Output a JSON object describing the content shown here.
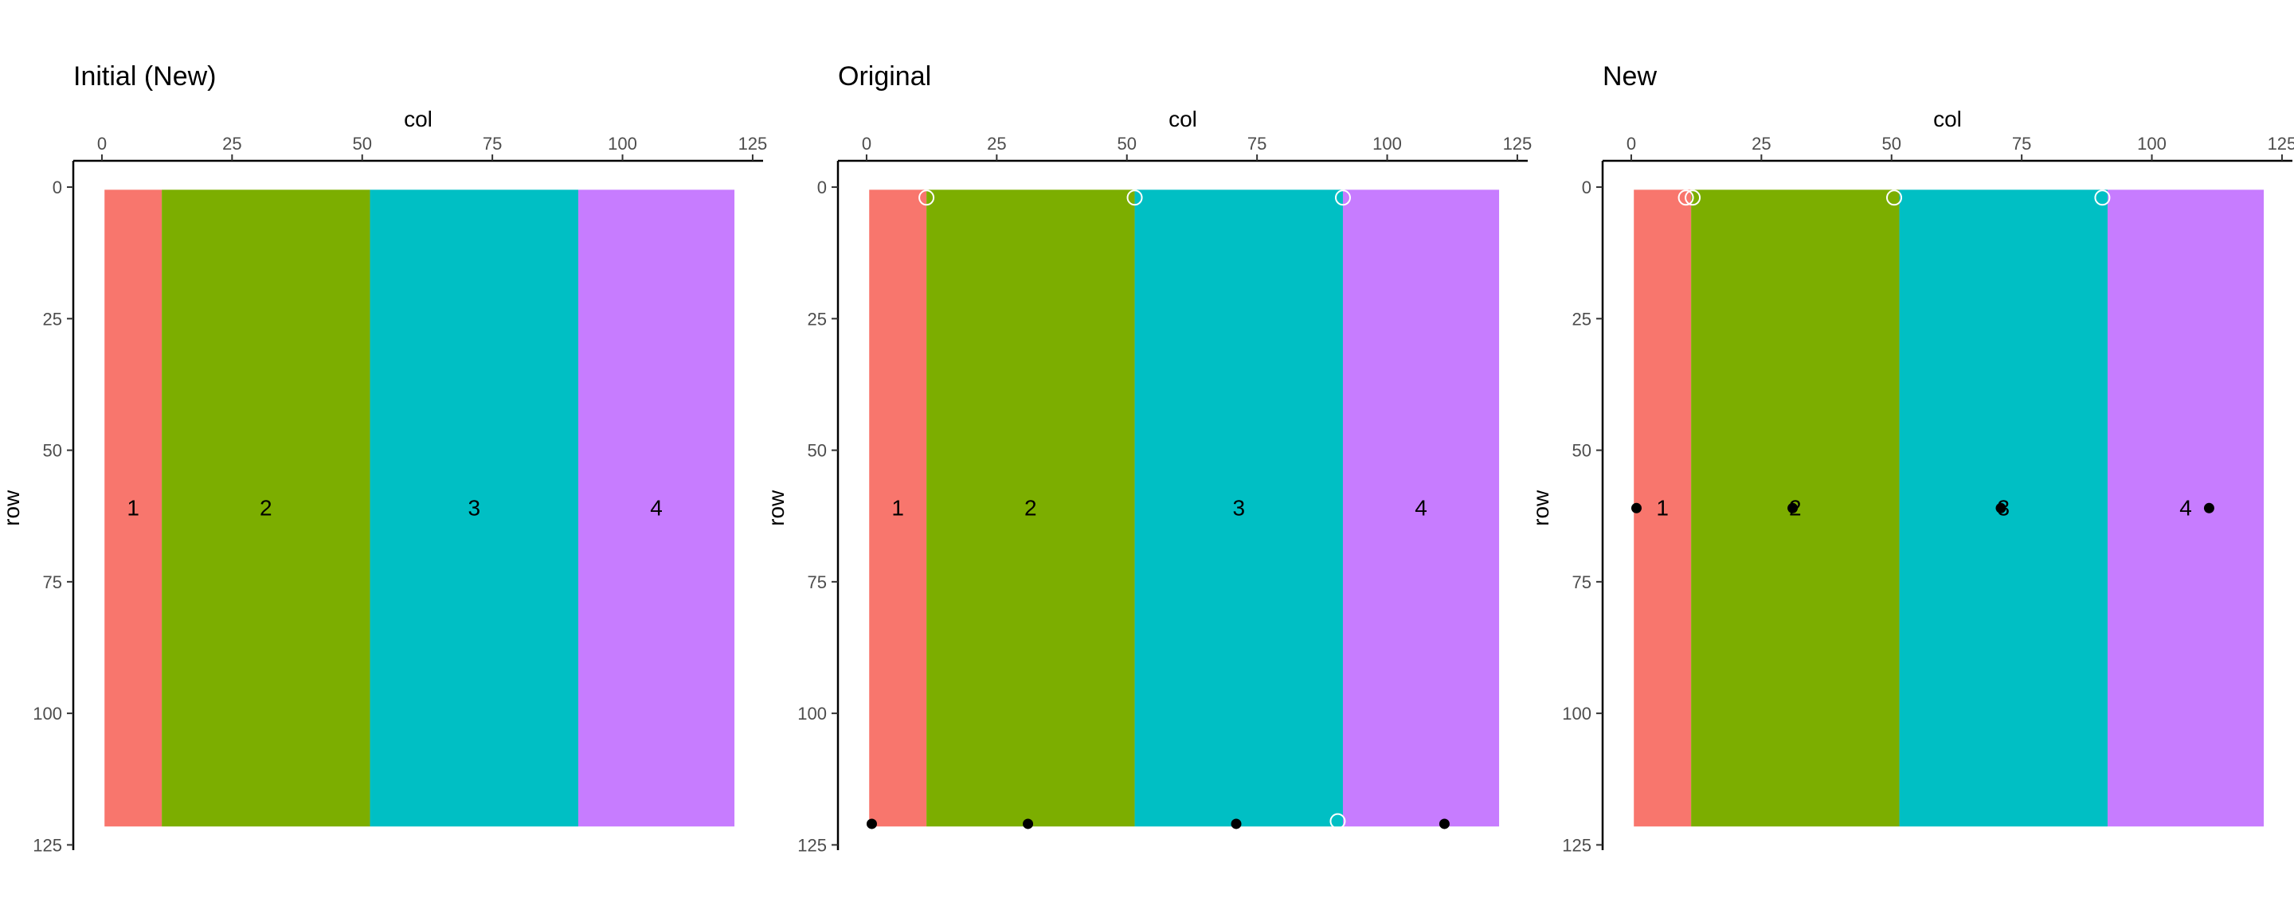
{
  "chart_data": [
    {
      "type": "heatmap",
      "title": "Initial (New)",
      "xlabel": "col",
      "ylabel": "row",
      "xlim": [
        -5.5,
        127
      ],
      "ylim": [
        -5,
        126
      ],
      "x_ticks": [
        0,
        25,
        50,
        75,
        100,
        125
      ],
      "y_ticks": [
        0,
        25,
        50,
        75,
        100,
        125
      ],
      "regions": [
        {
          "id": "1",
          "label": "1",
          "col_range": [
            0.5,
            11.5
          ],
          "row_range": [
            0.5,
            121.5
          ],
          "color": "#F8766D"
        },
        {
          "id": "2",
          "label": "2",
          "col_range": [
            11.5,
            51.5
          ],
          "row_range": [
            0.5,
            121.5
          ],
          "color": "#7CAE00"
        },
        {
          "id": "3",
          "label": "3",
          "col_range": [
            51.5,
            91.5
          ],
          "row_range": [
            0.5,
            121.5
          ],
          "color": "#00BFC4"
        },
        {
          "id": "4",
          "label": "4",
          "col_range": [
            91.5,
            121.5
          ],
          "row_range": [
            0.5,
            121.5
          ],
          "color": "#C77CFF"
        }
      ],
      "region_labels": [
        {
          "text": "1",
          "col": 6,
          "row": 61
        },
        {
          "text": "2",
          "col": 31.5,
          "row": 61
        },
        {
          "text": "3",
          "col": 71.5,
          "row": 61
        },
        {
          "text": "4",
          "col": 106.5,
          "row": 61
        }
      ],
      "open_points": [],
      "filled_points": []
    },
    {
      "type": "heatmap",
      "title": "Original",
      "xlabel": "col",
      "ylabel": "row",
      "xlim": [
        -5.5,
        127
      ],
      "ylim": [
        -5,
        126
      ],
      "x_ticks": [
        0,
        25,
        50,
        75,
        100,
        125
      ],
      "y_ticks": [
        0,
        25,
        50,
        75,
        100,
        125
      ],
      "regions": [
        {
          "id": "1",
          "label": "1",
          "col_range": [
            0.5,
            11.5
          ],
          "row_range": [
            0.5,
            121.5
          ],
          "color": "#F8766D"
        },
        {
          "id": "2",
          "label": "2",
          "col_range": [
            11.5,
            51.5
          ],
          "row_range": [
            0.5,
            121.5
          ],
          "color": "#7CAE00"
        },
        {
          "id": "3",
          "label": "3",
          "col_range": [
            51.5,
            91.5
          ],
          "row_range": [
            0.5,
            121.5
          ],
          "color": "#00BFC4"
        },
        {
          "id": "4",
          "label": "4",
          "col_range": [
            91.5,
            121.5
          ],
          "row_range": [
            0.5,
            121.5
          ],
          "color": "#C77CFF"
        }
      ],
      "region_labels": [
        {
          "text": "1",
          "col": 6,
          "row": 61
        },
        {
          "text": "2",
          "col": 31.5,
          "row": 61
        },
        {
          "text": "3",
          "col": 71.5,
          "row": 61
        },
        {
          "text": "4",
          "col": 106.5,
          "row": 61
        }
      ],
      "open_points": [
        {
          "col": 11.5,
          "row": 2
        },
        {
          "col": 51.5,
          "row": 2
        },
        {
          "col": 91.5,
          "row": 2
        },
        {
          "col": 90.5,
          "row": 120.5
        }
      ],
      "filled_points": [
        {
          "col": 1,
          "row": 121
        },
        {
          "col": 31,
          "row": 121
        },
        {
          "col": 71,
          "row": 121
        },
        {
          "col": 111,
          "row": 121
        }
      ]
    },
    {
      "type": "heatmap",
      "title": "New",
      "xlabel": "col",
      "ylabel": "row",
      "xlim": [
        -5.5,
        127
      ],
      "ylim": [
        -5,
        126
      ],
      "x_ticks": [
        0,
        25,
        50,
        75,
        100,
        125
      ],
      "y_ticks": [
        0,
        25,
        50,
        75,
        100,
        125
      ],
      "regions": [
        {
          "id": "1",
          "label": "1",
          "col_range": [
            0.5,
            11.5
          ],
          "row_range": [
            0.5,
            121.5
          ],
          "color": "#F8766D"
        },
        {
          "id": "2",
          "label": "2",
          "col_range": [
            11.5,
            51.5
          ],
          "row_range": [
            0.5,
            121.5
          ],
          "color": "#7CAE00"
        },
        {
          "id": "3",
          "label": "3",
          "col_range": [
            51.5,
            91.5
          ],
          "row_range": [
            0.5,
            121.5
          ],
          "color": "#00BFC4"
        },
        {
          "id": "4",
          "label": "4",
          "col_range": [
            91.5,
            121.5
          ],
          "row_range": [
            0.5,
            121.5
          ],
          "color": "#C77CFF"
        }
      ],
      "region_labels": [
        {
          "text": "1",
          "col": 6,
          "row": 61
        },
        {
          "text": "2",
          "col": 31.5,
          "row": 61
        },
        {
          "text": "3",
          "col": 71.5,
          "row": 61
        },
        {
          "text": "4",
          "col": 106.5,
          "row": 61
        }
      ],
      "open_points": [
        {
          "col": 10.5,
          "row": 2
        },
        {
          "col": 11.8,
          "row": 2
        },
        {
          "col": 50.5,
          "row": 2
        },
        {
          "col": 90.5,
          "row": 2
        }
      ],
      "filled_points": [
        {
          "col": 1,
          "row": 61
        },
        {
          "col": 31,
          "row": 61
        },
        {
          "col": 71,
          "row": 61
        },
        {
          "col": 111,
          "row": 61
        }
      ]
    }
  ]
}
